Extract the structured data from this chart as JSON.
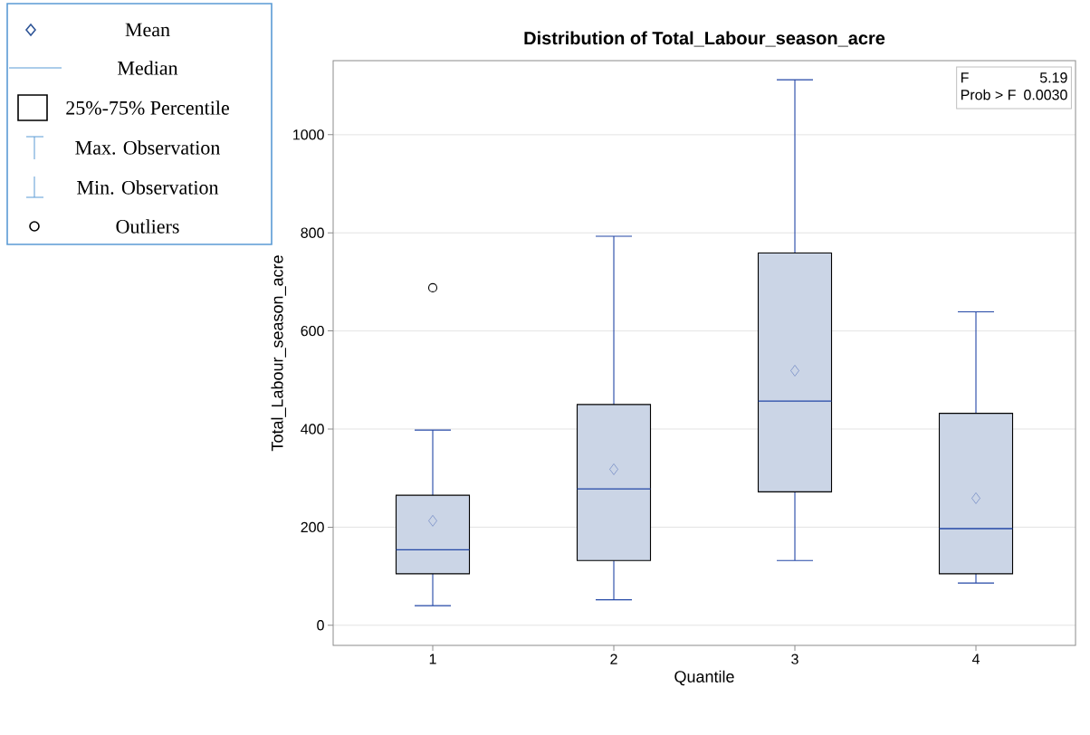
{
  "chart_data": {
    "type": "box",
    "title": "Distribution of Total_Labour_season_acre",
    "xlabel": "Quantile",
    "ylabel": "Total_Labour_season_acre",
    "categories": [
      "1",
      "2",
      "3",
      "4"
    ],
    "boxes": [
      {
        "low": 40,
        "q1": 105,
        "median": 154,
        "q3": 265,
        "high": 398,
        "mean": 213,
        "outliers": [
          688
        ]
      },
      {
        "low": 52,
        "q1": 132,
        "median": 278,
        "q3": 450,
        "high": 793,
        "mean": 318
      },
      {
        "low": 132,
        "q1": 272,
        "median": 457,
        "q3": 759,
        "high": 1112,
        "mean": 519
      },
      {
        "low": 86,
        "q1": 105,
        "median": 197,
        "q3": 432,
        "high": 639,
        "mean": 259
      }
    ],
    "color": "#cbd5e6",
    "ylim": [
      -41,
      1151
    ],
    "yticks": [
      0,
      200,
      400,
      600,
      800,
      1000
    ],
    "grid": "y",
    "annotations": [
      "Mean",
      "Median",
      "25%-75% Percentile",
      "Max. Observation",
      "Min. Observation",
      "Outliers",
      "F",
      "5.19",
      "Prob > F",
      "0.0030"
    ]
  }
}
